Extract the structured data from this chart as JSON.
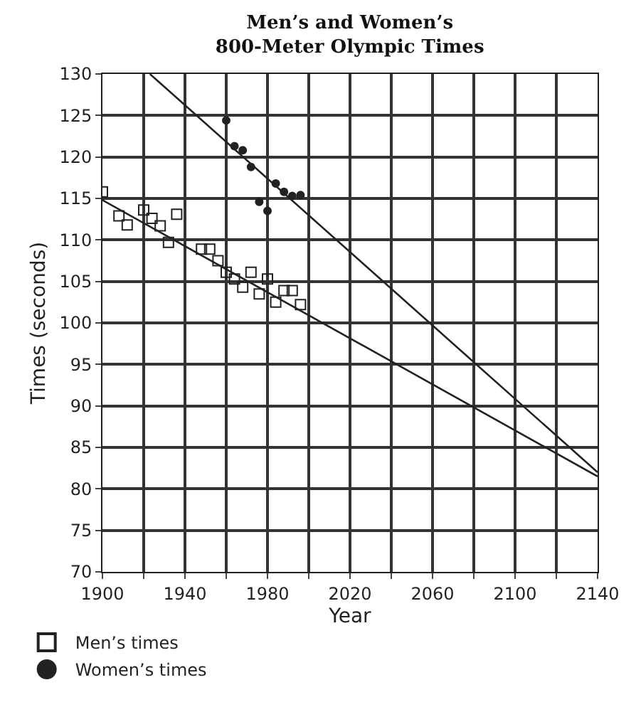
{
  "chart_data": {
    "type": "scatter",
    "title": "Men’s and Women’s\n800-Meter Olympic Times",
    "xlabel": "Year",
    "ylabel": "Times (seconds)",
    "xlim": [
      1900,
      2140
    ],
    "xticks": [
      1900,
      {
        "value": 1920,
        "label": null
      },
      1940,
      {
        "value": 1960,
        "label": null
      },
      1980,
      {
        "value": 2000,
        "label": null
      },
      2020,
      {
        "value": 2040,
        "label": null
      },
      2060,
      {
        "value": 2080,
        "label": null
      },
      2100,
      {
        "value": 2120,
        "label": null
      },
      2140
    ],
    "ylim": [
      70,
      130
    ],
    "yticks": [
      70,
      75,
      80,
      85,
      90,
      95,
      100,
      105,
      110,
      115,
      120,
      125,
      130
    ],
    "grid": true,
    "legend": "bottom left",
    "series": [
      {
        "name": "Men’s times",
        "marker": "square",
        "color": "#222222",
        "x": [
          1900,
          1908,
          1912,
          1920,
          1924,
          1928,
          1932,
          1936,
          1948,
          1952,
          1956,
          1960,
          1964,
          1968,
          1972,
          1976,
          1980,
          1984,
          1988,
          1992,
          1996
        ],
        "values": [
          115.8,
          112.9,
          111.8,
          113.6,
          112.6,
          111.7,
          109.7,
          113.1,
          108.9,
          108.9,
          107.5,
          106.1,
          105.3,
          104.3,
          106.1,
          103.5,
          105.3,
          102.5,
          103.9,
          103.9,
          102.2
        ]
      },
      {
        "name": "Women’s times",
        "marker": "circle",
        "color": "#222222",
        "x": [
          1960,
          1964,
          1968,
          1972,
          1976,
          1980,
          1984,
          1988,
          1992,
          1996
        ],
        "values": [
          124.4,
          121.3,
          120.8,
          118.8,
          114.6,
          113.5,
          116.8,
          115.8,
          115.3,
          115.4
        ]
      },
      {
        "type": "line",
        "color": "#222222",
        "x": [
          1900,
          2140
        ],
        "values": [
          114.8,
          81.5
        ]
      },
      {
        "type": "line",
        "color": "#222222",
        "x": [
          1923,
          2140
        ],
        "values": [
          130,
          82
        ]
      }
    ]
  }
}
